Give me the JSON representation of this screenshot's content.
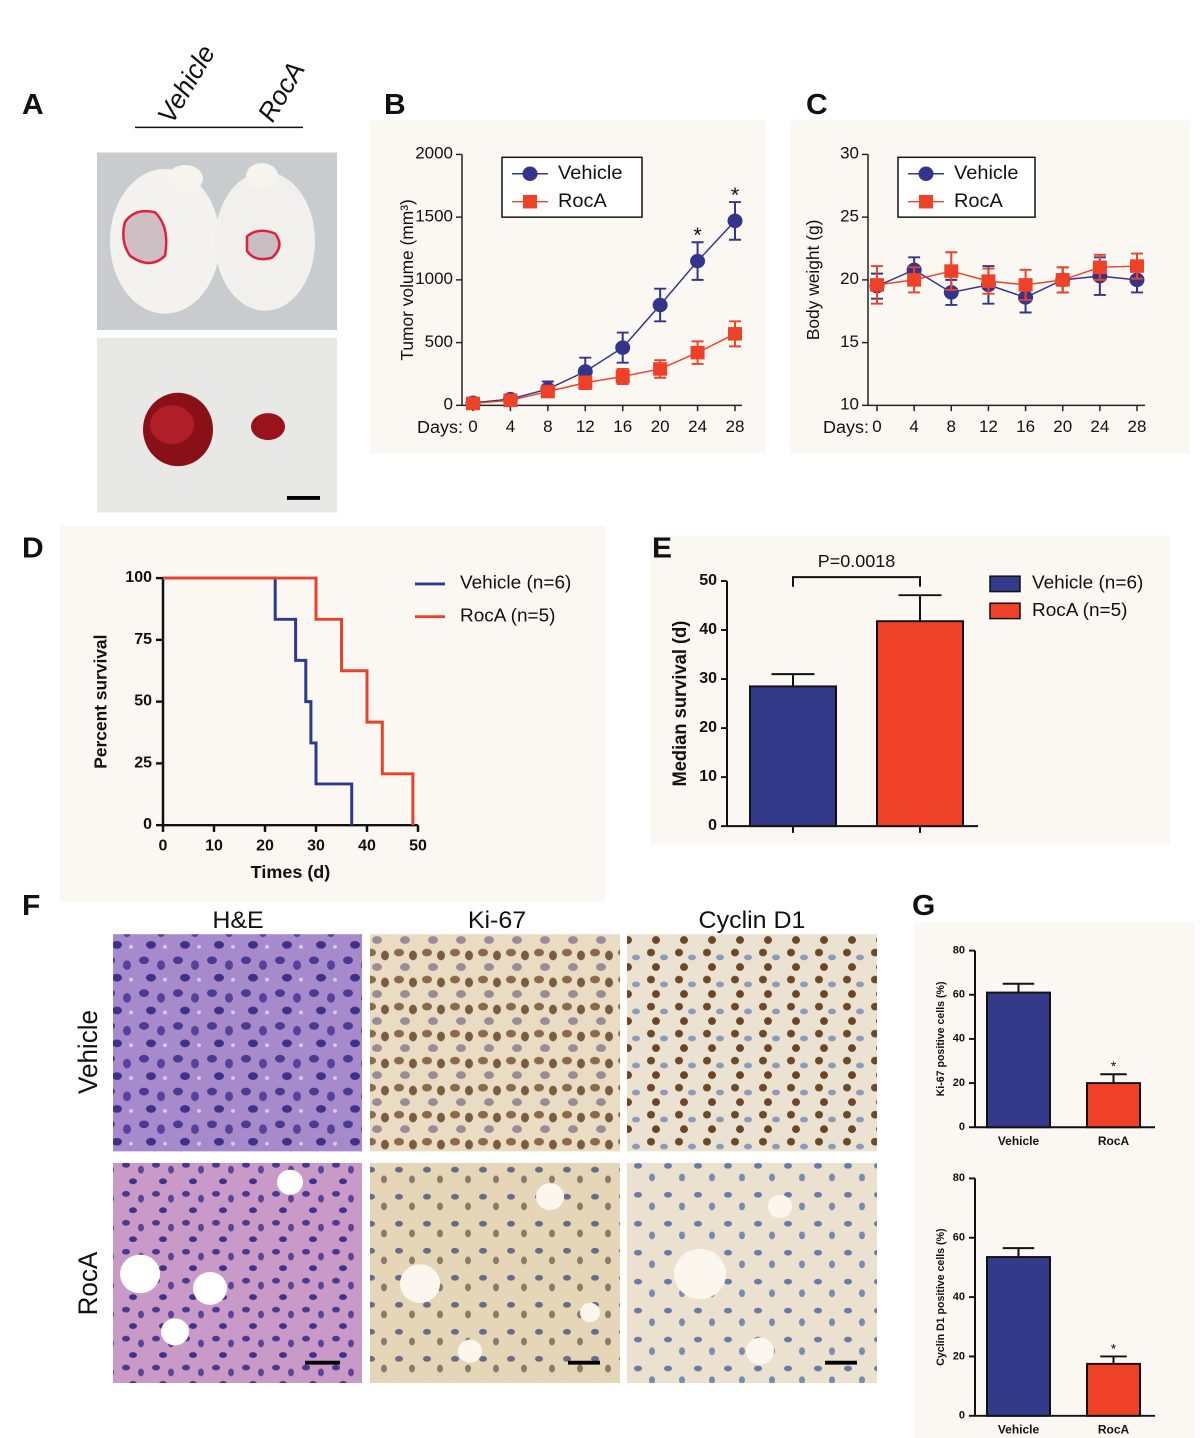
{
  "panels": {
    "A": {
      "label": "A",
      "columns": [
        "Vehicle",
        "RocA"
      ]
    },
    "F": {
      "label": "F",
      "columns": [
        "H&E",
        "Ki-67",
        "Cyclin D1"
      ],
      "rows": [
        "Vehicle",
        "RocA"
      ]
    },
    "G": {
      "label": "G"
    }
  },
  "chart_data": [
    {
      "panel": "B",
      "type": "line",
      "ylabel": "Tumor volume (mm³)",
      "xlabel": "Days:",
      "x": [
        0,
        4,
        8,
        12,
        16,
        20,
        24,
        28
      ],
      "xlim": [
        0,
        28
      ],
      "xticks": [
        0,
        4,
        8,
        12,
        16,
        20,
        24,
        28
      ],
      "ylim": [
        0,
        2000
      ],
      "yticks": [
        0,
        500,
        1000,
        1500,
        2000
      ],
      "legend": "upper left",
      "series": [
        {
          "name": "Vehicle",
          "color": "#34358a",
          "marker": "circle",
          "values": [
            20,
            50,
            130,
            270,
            460,
            800,
            1150,
            1470
          ],
          "errors": [
            10,
            20,
            60,
            110,
            120,
            130,
            150,
            150
          ]
        },
        {
          "name": "RocA",
          "color": "#ee4128",
          "marker": "square",
          "values": [
            15,
            40,
            110,
            180,
            230,
            290,
            420,
            570
          ],
          "errors": [
            10,
            15,
            40,
            50,
            60,
            70,
            90,
            100
          ]
        }
      ],
      "annotations": [
        {
          "text": "*",
          "x": 24
        },
        {
          "text": "*",
          "x": 28
        }
      ]
    },
    {
      "panel": "C",
      "type": "line",
      "ylabel": "Body weight (g)",
      "xlabel": "Days:",
      "x": [
        0,
        4,
        8,
        12,
        16,
        20,
        24,
        28
      ],
      "xlim": [
        0,
        28
      ],
      "xticks": [
        0,
        4,
        8,
        12,
        16,
        20,
        24,
        28
      ],
      "ylim": [
        10,
        30
      ],
      "yticks": [
        10,
        15,
        20,
        25,
        30
      ],
      "legend": "upper left",
      "series": [
        {
          "name": "Vehicle",
          "color": "#34358a",
          "marker": "circle",
          "values": [
            19.5,
            20.8,
            19,
            19.6,
            18.6,
            20,
            20.3,
            20
          ],
          "errors": [
            1,
            1,
            1,
            1.5,
            1.2,
            1,
            1.5,
            1
          ]
        },
        {
          "name": "RocA",
          "color": "#ee4128",
          "marker": "square",
          "values": [
            19.6,
            20,
            20.7,
            19.9,
            19.6,
            20,
            21,
            21.1
          ],
          "errors": [
            1.5,
            1,
            1.5,
            1,
            1.2,
            1,
            1,
            1
          ]
        }
      ]
    },
    {
      "panel": "D",
      "type": "step",
      "xlabel": "Times (d)",
      "ylabel": "Percent survival",
      "xlim": [
        0,
        50
      ],
      "xticks": [
        0,
        10,
        20,
        30,
        40,
        50
      ],
      "ylim": [
        0,
        100
      ],
      "yticks": [
        0,
        25,
        50,
        75,
        100
      ],
      "legend": "upper right",
      "series": [
        {
          "name": "Vehicle (n=6)",
          "color": "#2b3a8f",
          "x": [
            0,
            22,
            26,
            28,
            29,
            30,
            37
          ],
          "values": [
            100,
            83.3,
            66.7,
            50,
            33.3,
            16.7,
            0
          ]
        },
        {
          "name": "RocA (n=5)",
          "color": "#e8432a",
          "x": [
            0,
            30,
            35,
            40,
            43,
            49
          ],
          "values": [
            100,
            83.3,
            62.5,
            41.7,
            20.8,
            0
          ]
        }
      ]
    },
    {
      "panel": "E",
      "type": "bar",
      "ylabel": "Median survival (d)",
      "categories": [
        null,
        null
      ],
      "values": [
        28.5,
        41.8
      ],
      "errors": [
        2.5,
        5.3
      ],
      "colors": [
        "#343a8a",
        "#ee4128"
      ],
      "legend": [
        "Vehicle (n=6)",
        "RocA (n=5)"
      ],
      "annotation": "P=0.0018",
      "ylim": [
        0,
        50
      ],
      "yticks": [
        0,
        10,
        20,
        30,
        40,
        50
      ]
    },
    {
      "type": "bar",
      "ylabel": "Ki-67 positive cells (%)",
      "categories": [
        "Vehicle",
        "RocA"
      ],
      "values": [
        61,
        20
      ],
      "errors": [
        4,
        4
      ],
      "colors": [
        "#343a8a",
        "#ee4128"
      ],
      "ylim": [
        0,
        80
      ],
      "yticks": [
        0,
        20,
        40,
        60,
        80
      ],
      "annotations": [
        {
          "text": "*",
          "x": "RocA"
        }
      ]
    },
    {
      "type": "bar",
      "ylabel": "Cyclin D1 positive cells (%)",
      "categories": [
        "Vehicle",
        "RocA"
      ],
      "values": [
        53.5,
        17.5
      ],
      "errors": [
        3,
        2.5
      ],
      "colors": [
        "#343a8a",
        "#ee4128"
      ],
      "ylim": [
        0,
        80
      ],
      "yticks": [
        0,
        20,
        40,
        60,
        80
      ],
      "annotations": [
        {
          "text": "*",
          "x": "RocA"
        }
      ]
    }
  ]
}
